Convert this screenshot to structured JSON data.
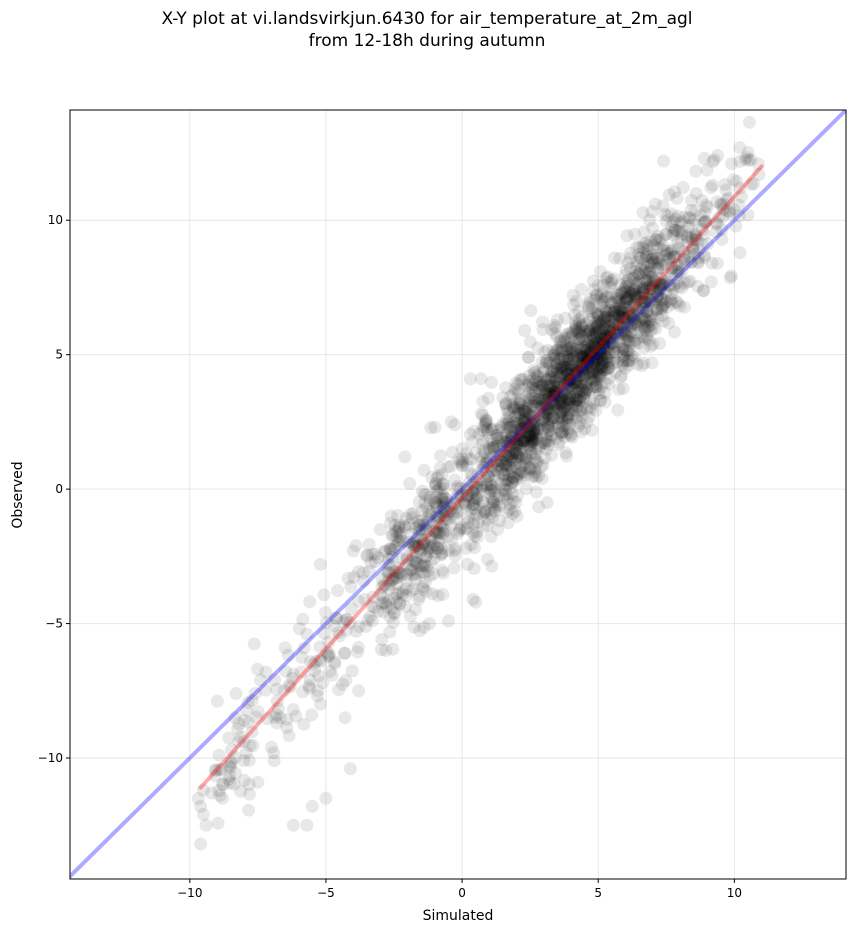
{
  "chart_data": {
    "type": "scatter",
    "title": "X-Y plot at vi.landsvirkjun.6430 for air_temperature_at_2m_agl",
    "subtitle": "from 12-18h during autumn",
    "xlabel": "Simulated",
    "ylabel": "Observed",
    "xlim": [
      -14.4,
      14.1
    ],
    "ylim": [
      -14.5,
      14.1
    ],
    "xticks": [
      -10,
      -5,
      0,
      5,
      10
    ],
    "yticks": [
      -10,
      -5,
      0,
      5,
      10
    ],
    "xtick_labels": [
      "−10",
      "−5",
      "0",
      "5",
      "10"
    ],
    "ytick_labels": [
      "−10",
      "−5",
      "0",
      "5",
      "10"
    ],
    "grid": true,
    "point_color": "#000000",
    "point_opacity": 0.09,
    "identity_line": {
      "x": [
        -14.4,
        14.1
      ],
      "y": [
        -14.4,
        14.1
      ],
      "color": "#0000ff",
      "opacity": 0.33
    },
    "fit_line": {
      "x": [
        -9.6,
        11.0
      ],
      "y": [
        -11.1,
        12.0
      ],
      "color": "#ff0000",
      "opacity": 0.33
    },
    "scatter_cloud": {
      "description_points": [
        [
          -9.6,
          -11.8
        ],
        [
          -9.5,
          -12.1
        ],
        [
          -9.4,
          -12.5
        ],
        [
          -9.6,
          -13.2
        ],
        [
          -9.2,
          -11.3
        ],
        [
          -8.9,
          -11.4
        ],
        [
          -8.8,
          -11.5
        ],
        [
          -8.2,
          -9.4
        ],
        [
          -8.3,
          -7.6
        ],
        [
          -8.0,
          -8.6
        ],
        [
          -7.6,
          -7.6
        ],
        [
          -7.4,
          -7.1
        ],
        [
          -7.2,
          -6.8
        ],
        [
          -7.0,
          -9.6
        ],
        [
          -6.9,
          -10.1
        ],
        [
          -7.5,
          -10.9
        ],
        [
          -6.8,
          -8.7
        ],
        [
          -6.5,
          -5.9
        ],
        [
          -6.2,
          -12.5
        ],
        [
          -5.7,
          -12.5
        ],
        [
          -5.5,
          -11.8
        ],
        [
          -5.0,
          -11.5
        ],
        [
          -5.2,
          -2.8
        ],
        [
          -5.9,
          -6.8
        ],
        [
          -5.6,
          -7.4
        ],
        [
          -5.3,
          -7.5
        ],
        [
          -5.2,
          -8.0
        ],
        [
          -4.9,
          -6.2
        ],
        [
          -4.6,
          -4.8
        ],
        [
          -4.3,
          -8.5
        ],
        [
          -4.1,
          -10.4
        ],
        [
          -4.0,
          -2.3
        ],
        [
          -3.9,
          -2.1
        ],
        [
          -3.8,
          -7.5
        ],
        [
          -3.5,
          -2.5
        ],
        [
          -3.3,
          -4.9
        ],
        [
          -3.0,
          -1.5
        ],
        [
          -2.8,
          -6.0
        ],
        [
          -2.6,
          -1.0
        ],
        [
          -2.4,
          -4.2
        ],
        [
          -2.1,
          1.2
        ],
        [
          -1.9,
          -3.0
        ],
        [
          -1.6,
          -4.1
        ],
        [
          -1.4,
          0.7
        ],
        [
          -1.2,
          -5.0
        ],
        [
          -1.0,
          2.3
        ],
        [
          -0.9,
          -2.2
        ],
        [
          -0.7,
          -0.5
        ],
        [
          -0.5,
          -4.9
        ],
        [
          -0.4,
          2.5
        ],
        [
          -0.2,
          -1.1
        ],
        [
          0.0,
          1.5
        ],
        [
          0.2,
          -2.8
        ],
        [
          0.3,
          4.1
        ],
        [
          0.4,
          -4.1
        ],
        [
          0.5,
          -4.2
        ],
        [
          0.7,
          1.0
        ],
        [
          0.9,
          0.3
        ],
        [
          1.1,
          2.2
        ],
        [
          1.3,
          -1.5
        ],
        [
          1.5,
          3.4
        ],
        [
          1.8,
          0.8
        ],
        [
          2.1,
          2.4
        ],
        [
          2.3,
          5.9
        ],
        [
          2.6,
          1.2
        ],
        [
          2.9,
          3.9
        ],
        [
          3.2,
          2.6
        ],
        [
          3.5,
          6.3
        ],
        [
          3.8,
          3.1
        ],
        [
          4.1,
          4.6
        ],
        [
          4.4,
          5.7
        ],
        [
          4.7,
          3.3
        ],
        [
          5.0,
          5.0
        ],
        [
          5.3,
          6.6
        ],
        [
          5.6,
          8.6
        ],
        [
          5.9,
          5.1
        ],
        [
          6.2,
          7.2
        ],
        [
          6.5,
          9.0
        ],
        [
          6.8,
          6.6
        ],
        [
          7.1,
          10.6
        ],
        [
          7.4,
          12.2
        ],
        [
          7.7,
          8.2
        ],
        [
          8.0,
          9.9
        ],
        [
          8.3,
          9.2
        ],
        [
          8.6,
          11.0
        ],
        [
          8.9,
          12.3
        ],
        [
          9.2,
          11.3
        ],
        [
          9.6,
          10.6
        ],
        [
          9.9,
          12.1
        ],
        [
          10.2,
          12.7
        ],
        [
          10.5,
          10.2
        ],
        [
          10.9,
          11.7
        ]
      ],
      "approx_count": 2200,
      "relation": "observed ≈ 1.12 × simulated − 0.35",
      "noise_sd": 1.1
    }
  }
}
